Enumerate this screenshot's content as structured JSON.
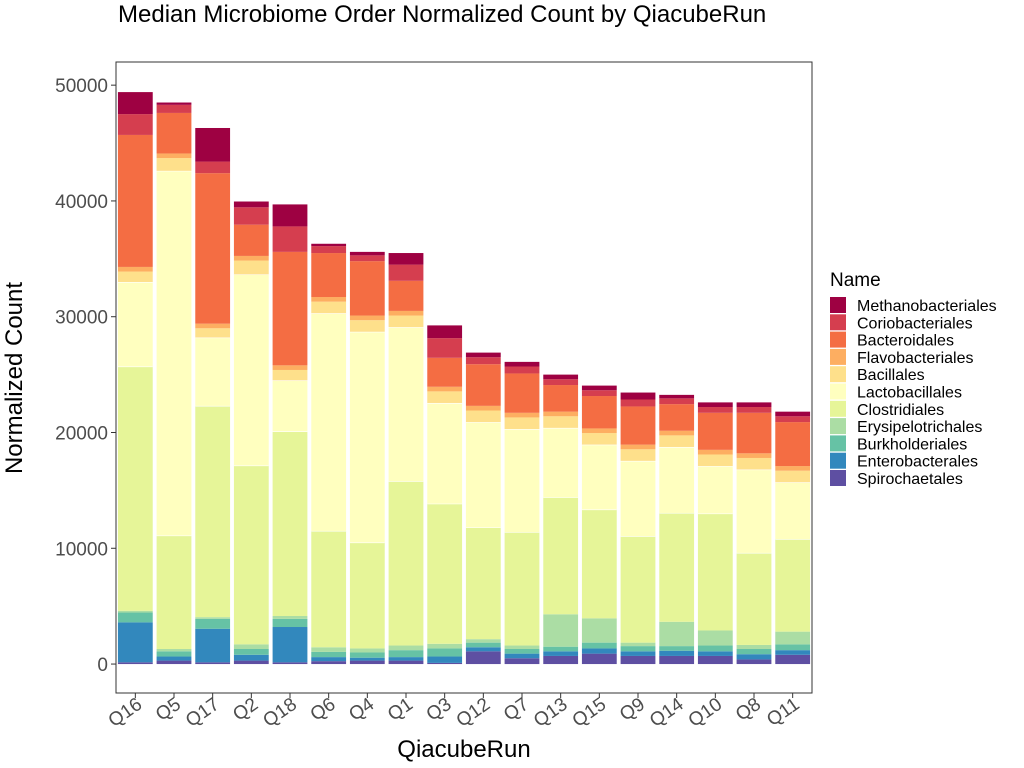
{
  "chart_data": {
    "type": "bar",
    "stacked": true,
    "title": "Median Microbiome Order Normalized Count by QiacubeRun",
    "xlabel": "QiacubeRun",
    "ylabel": "Normalized Count",
    "ylim": [
      -2500,
      52000
    ],
    "yticks": [
      0,
      10000,
      20000,
      30000,
      40000,
      50000
    ],
    "grid": false,
    "legend_title": "Name",
    "legend_position": "right",
    "categories": [
      "Q16",
      "Q5",
      "Q17",
      "Q2",
      "Q18",
      "Q6",
      "Q4",
      "Q1",
      "Q3",
      "Q12",
      "Q7",
      "Q13",
      "Q15",
      "Q9",
      "Q14",
      "Q10",
      "Q8",
      "Q11"
    ],
    "series": [
      {
        "name": "Spirochaetales",
        "color": "#5e4fa2",
        "values": [
          150,
          300,
          150,
          300,
          150,
          250,
          300,
          300,
          100,
          1100,
          500,
          700,
          900,
          700,
          700,
          700,
          400,
          800
        ]
      },
      {
        "name": "Enterobacterales",
        "color": "#3288bd",
        "values": [
          3450,
          350,
          2900,
          500,
          3050,
          350,
          250,
          300,
          550,
          350,
          400,
          400,
          450,
          400,
          450,
          400,
          450,
          400
        ]
      },
      {
        "name": "Burkholderiales",
        "color": "#66c2a5",
        "values": [
          850,
          450,
          850,
          500,
          700,
          450,
          450,
          600,
          700,
          400,
          400,
          400,
          500,
          450,
          400,
          500,
          450,
          500
        ]
      },
      {
        "name": "Erysipelotrichales",
        "color": "#abdda4",
        "values": [
          150,
          200,
          150,
          400,
          250,
          400,
          350,
          400,
          400,
          300,
          300,
          2800,
          2100,
          300,
          2100,
          1300,
          350,
          1100
        ]
      },
      {
        "name": "Clostridiales",
        "color": "#e6f598",
        "values": [
          21100,
          9800,
          18250,
          15450,
          15950,
          10050,
          9150,
          14200,
          12100,
          9650,
          9800,
          10100,
          9400,
          9200,
          9400,
          10100,
          7950,
          8000
        ]
      },
      {
        "name": "Lactobacillales",
        "color": "#ffffbf",
        "values": [
          7300,
          31500,
          5900,
          16500,
          4400,
          18800,
          18200,
          13300,
          8700,
          9100,
          8900,
          6000,
          5600,
          6500,
          5700,
          4100,
          7200,
          4900
        ]
      },
      {
        "name": "Bacillales",
        "color": "#fee08b",
        "values": [
          900,
          1100,
          800,
          1200,
          900,
          1000,
          1000,
          1000,
          1000,
          1000,
          1000,
          1000,
          1000,
          1000,
          1000,
          1000,
          1000,
          1000
        ]
      },
      {
        "name": "Flavobacteriales",
        "color": "#fdae61",
        "values": [
          400,
          400,
          400,
          400,
          400,
          400,
          400,
          400,
          400,
          400,
          400,
          400,
          400,
          400,
          400,
          400,
          400,
          400
        ]
      },
      {
        "name": "Bacteroidales",
        "color": "#f46d43",
        "values": [
          11400,
          3500,
          13000,
          2700,
          9800,
          3800,
          4700,
          2600,
          2500,
          3600,
          3400,
          2300,
          2800,
          3300,
          2300,
          3200,
          3500,
          3800
        ]
      },
      {
        "name": "Coriobacteriales",
        "color": "#d53e4f",
        "values": [
          1800,
          700,
          1000,
          1500,
          2200,
          600,
          500,
          1400,
          1700,
          600,
          600,
          500,
          500,
          600,
          500,
          500,
          500,
          500
        ]
      },
      {
        "name": "Methanobacteriales",
        "color": "#9e0142",
        "values": [
          1900,
          200,
          2900,
          500,
          1900,
          200,
          300,
          1000,
          1100,
          400,
          400,
          400,
          400,
          600,
          300,
          400,
          400,
          400
        ]
      }
    ]
  }
}
